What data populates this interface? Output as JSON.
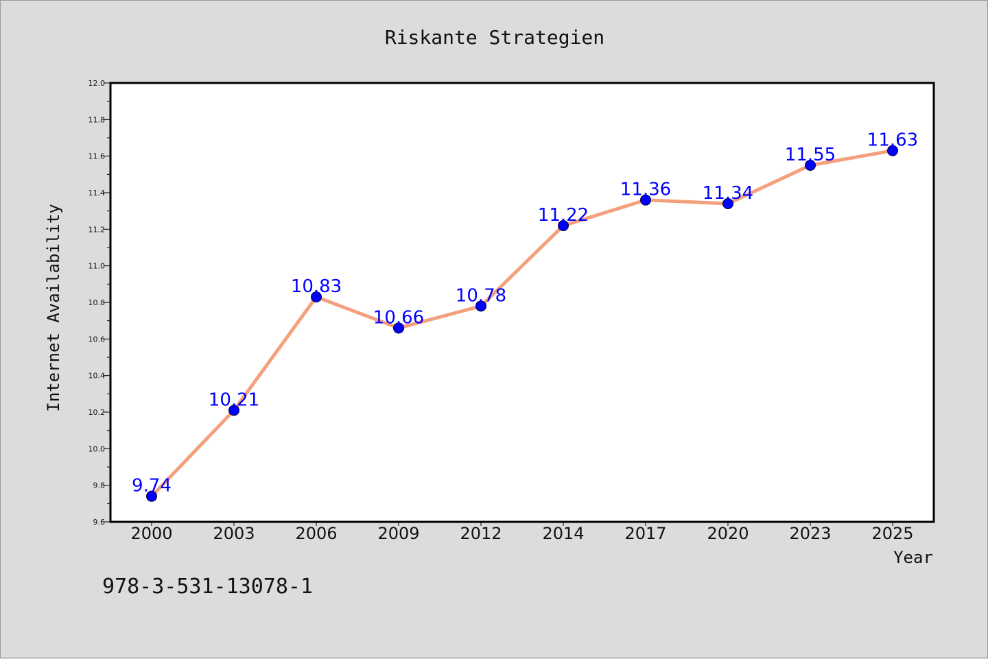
{
  "figure": {
    "background": "#dcdcdc",
    "isbn": "978-3-531-13078-1"
  },
  "chart_data": {
    "type": "line",
    "title": "Riskante Strategien",
    "xlabel": "Year",
    "ylabel": "Internet Availability",
    "categories": [
      "2000",
      "2003",
      "2006",
      "2009",
      "2012",
      "2014",
      "2017",
      "2020",
      "2023",
      "2025"
    ],
    "series": [
      {
        "values": [
          9.74,
          10.21,
          10.83,
          10.66,
          10.78,
          11.22,
          11.36,
          11.34,
          11.55,
          11.63
        ],
        "value_labels": [
          "9.74",
          "10.21",
          "10.83",
          "10.66",
          "10.78",
          "11.22",
          "11.36",
          "11.34",
          "11.55",
          "11.63"
        ],
        "line_color": "#f4a07c",
        "marker_color": "#0000ff",
        "label_color": "#0000ff"
      }
    ],
    "ylim": [
      9.6,
      12.0
    ],
    "yticks": [
      "9.6",
      "9.8",
      "10.0",
      "10.2",
      "10.4",
      "10.6",
      "10.8",
      "11.0",
      "11.2",
      "11.4",
      "11.6",
      "11.8",
      "12.0"
    ],
    "grid": false,
    "plot_background": "#ffffff"
  }
}
